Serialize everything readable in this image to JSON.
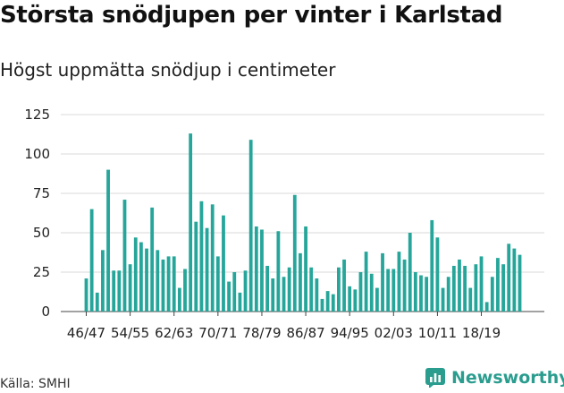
{
  "header": {
    "title": "Största snödjupen per vinter i Karlstad",
    "subtitle": "Högst uppmätta snödjup i centimeter"
  },
  "footer": {
    "source": "Källa: SMHI",
    "brand": "Newsworthy",
    "brand_icon": "newsworthy-logo-icon"
  },
  "colors": {
    "bar": "#26a69a",
    "grid": "#d9d9d9",
    "brand": "#2a9d8f"
  },
  "chart_data": {
    "type": "bar",
    "ylim": [
      0,
      125
    ],
    "yticks": [
      0,
      25,
      50,
      75,
      100,
      125
    ],
    "grid": true,
    "tick_labels": [
      "46/47",
      "54/55",
      "62/63",
      "70/71",
      "78/79",
      "86/87",
      "94/95",
      "02/03",
      "10/11",
      "18/19"
    ],
    "values": [
      21,
      65,
      12,
      39,
      90,
      26,
      26,
      71,
      30,
      47,
      44,
      40,
      66,
      39,
      33,
      35,
      35,
      15,
      27,
      113,
      57,
      70,
      53,
      68,
      35,
      61,
      19,
      25,
      12,
      26,
      109,
      54,
      52,
      29,
      21,
      51,
      22,
      28,
      74,
      37,
      54,
      28,
      21,
      8,
      13,
      11,
      28,
      33,
      16,
      14,
      25,
      38,
      24,
      15,
      37,
      27,
      27,
      38,
      33,
      50,
      25,
      23,
      22,
      58,
      47,
      15,
      22,
      29,
      33,
      29,
      15,
      30,
      35,
      6,
      22,
      34,
      30,
      43,
      40,
      36
    ]
  }
}
